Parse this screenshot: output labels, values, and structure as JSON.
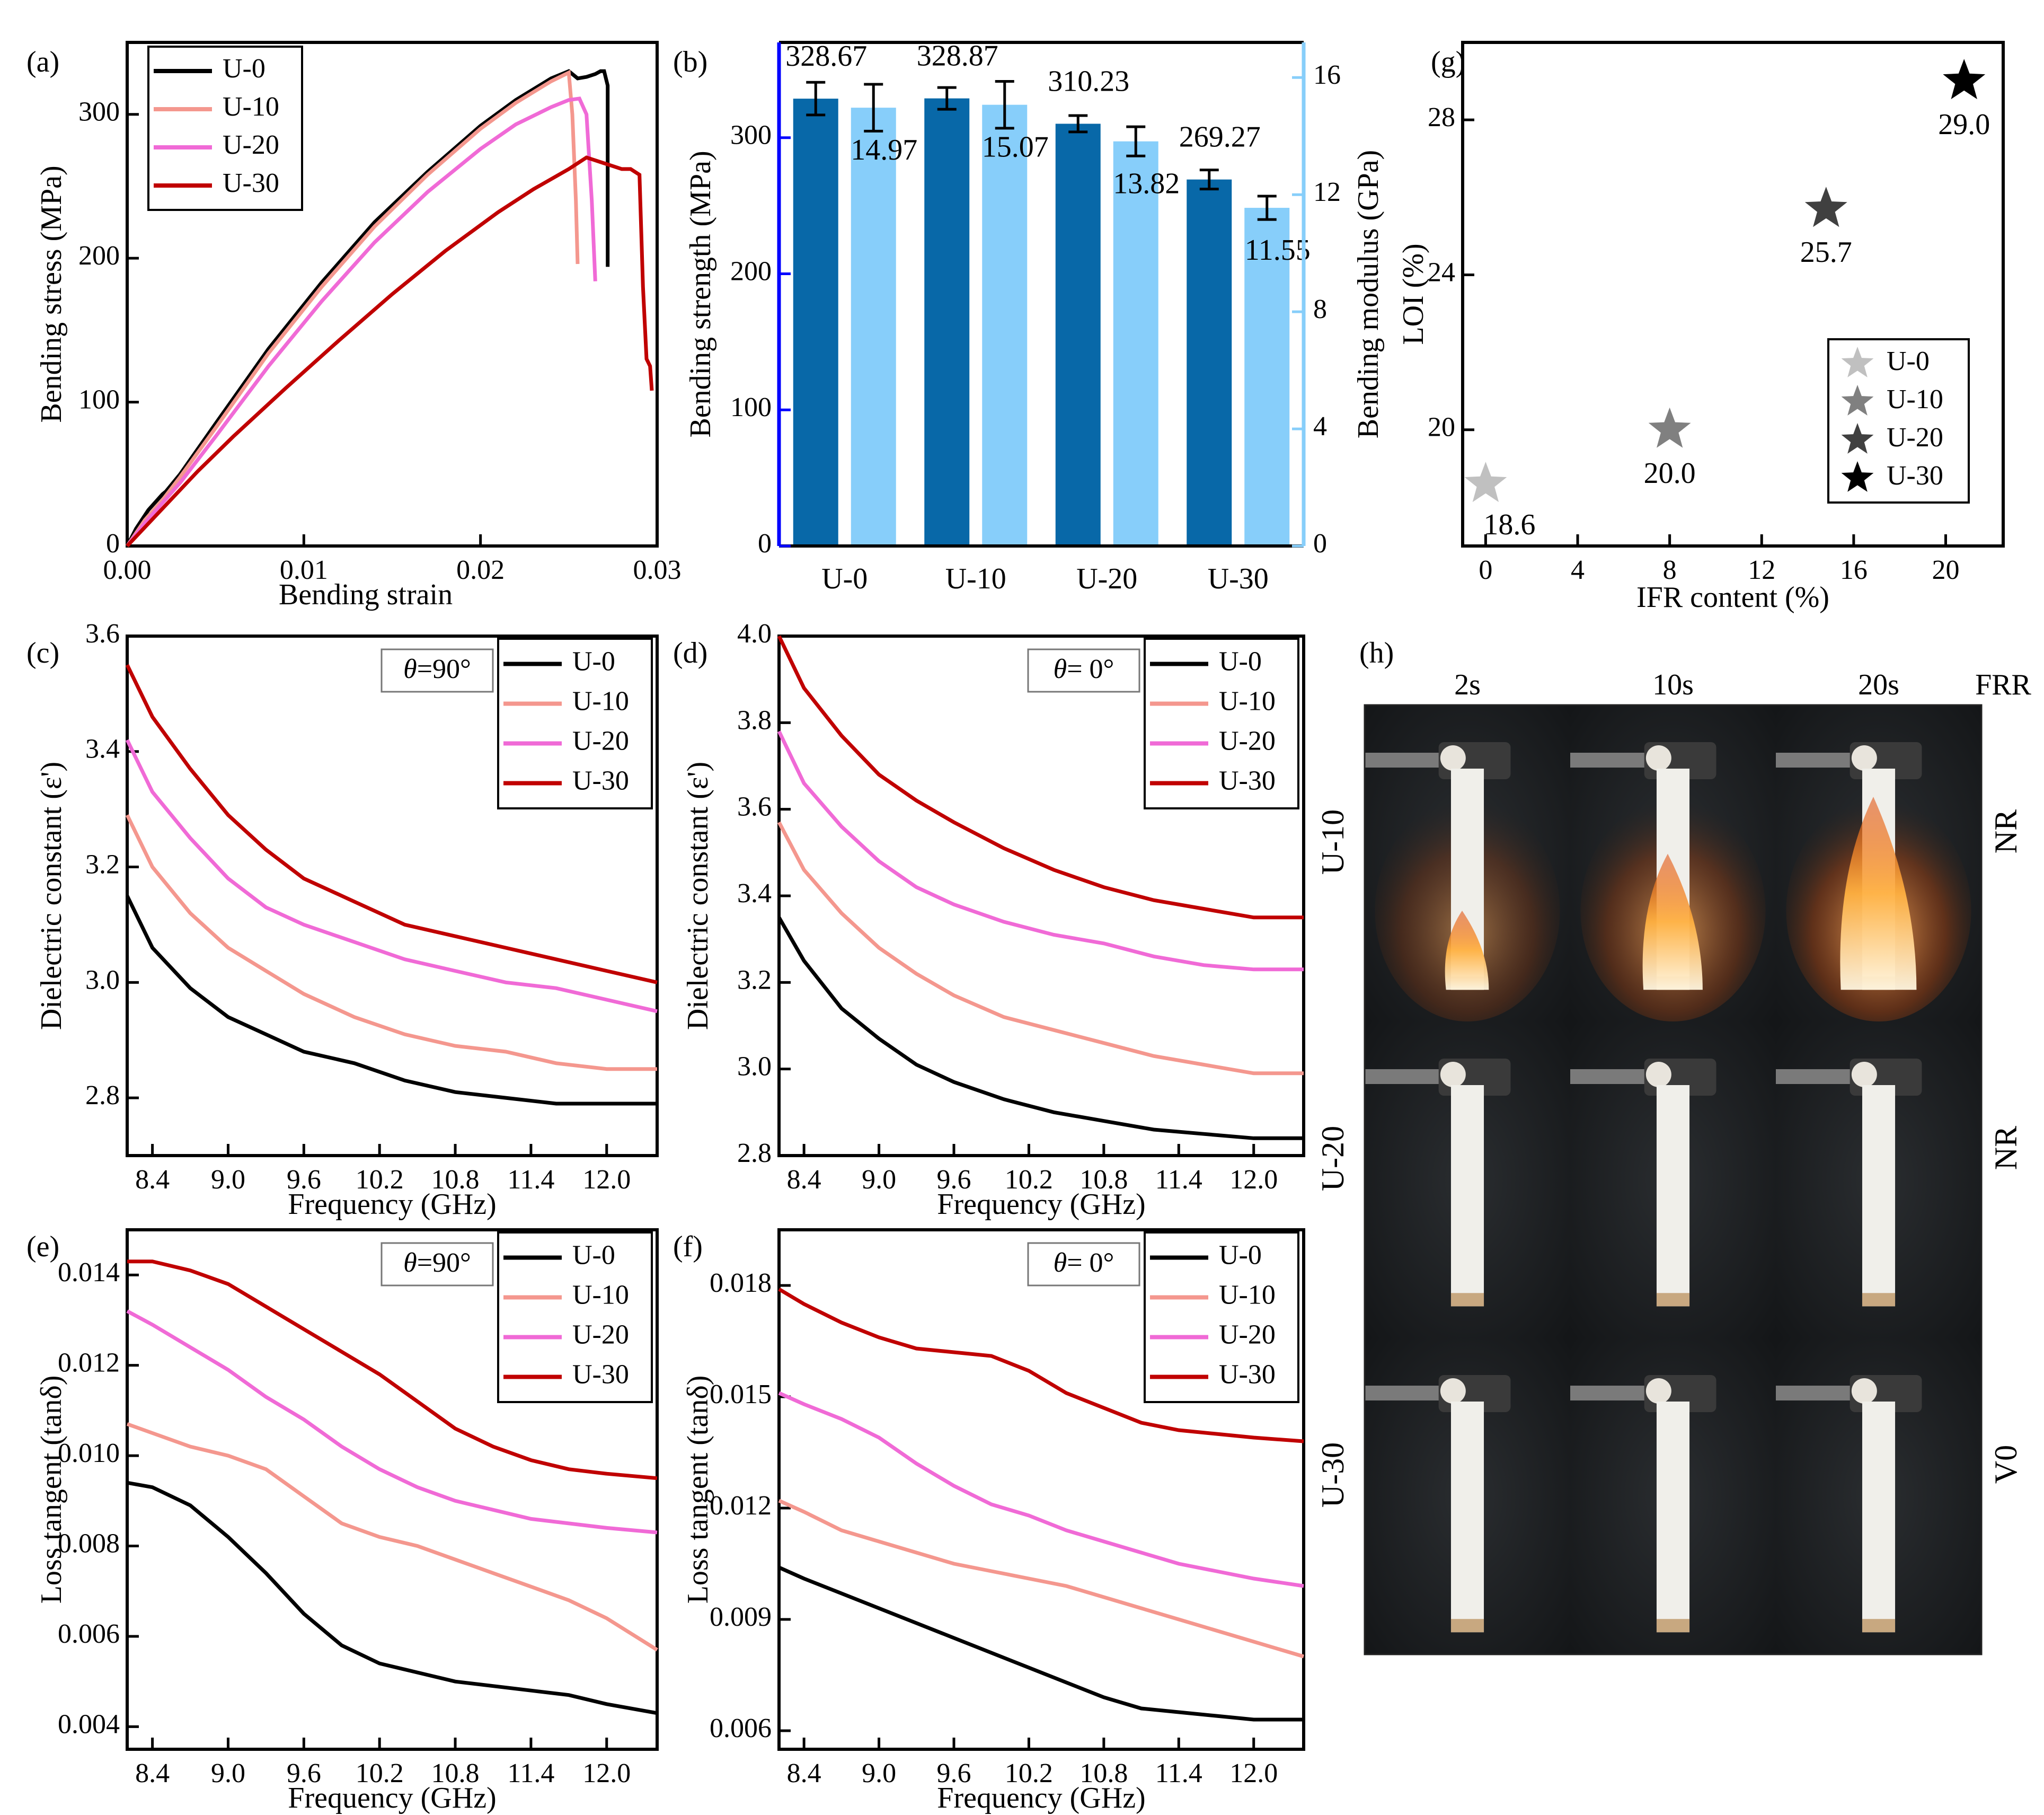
{
  "figure": {
    "panel_labels": [
      "(a)",
      "(b)",
      "(c)",
      "(d)",
      "(e)",
      "(f)",
      "(g)",
      "(h)"
    ]
  },
  "colors": {
    "U-0": "#000000",
    "U-10": "#f4978e",
    "U-20": "#f06ad6",
    "U-30": "#c00000",
    "bar_strength": "#0868a8",
    "bar_modulus": "#87cefa",
    "axis_strength": "#0000ff",
    "axis_modulus": "#87cefa",
    "star_U-0": "#c0c0c0",
    "star_U-10": "#808080",
    "star_U-20": "#404040",
    "star_U-30": "#000000"
  },
  "chart_data": [
    {
      "id": "a",
      "type": "line",
      "xlabel": "Bending strain",
      "ylabel": "Bending stress (MPa)",
      "xlim": [
        0,
        0.03
      ],
      "ylim": [
        0,
        350
      ],
      "xticks": [
        0.0,
        0.01,
        0.02,
        0.03
      ],
      "xtick_labels": [
        "0.00",
        "0.01",
        "0.02",
        "0.03"
      ],
      "yticks": [
        0,
        100,
        200,
        300
      ],
      "legend": "top-left",
      "series": [
        {
          "name": "U-0",
          "x": [
            0,
            0.0005,
            0.0012,
            0.002,
            0.0022,
            0.003,
            0.005,
            0.008,
            0.011,
            0.014,
            0.017,
            0.02,
            0.022,
            0.024,
            0.025,
            0.0255,
            0.026,
            0.0265,
            0.0268,
            0.027,
            0.0272,
            0.0272
          ],
          "y": [
            0,
            12,
            25,
            36,
            38,
            50,
            85,
            137,
            183,
            225,
            260,
            292,
            310,
            325,
            330,
            325,
            326,
            328,
            330,
            330,
            320,
            194
          ]
        },
        {
          "name": "U-10",
          "x": [
            0,
            0.001,
            0.002,
            0.003,
            0.005,
            0.008,
            0.011,
            0.014,
            0.017,
            0.02,
            0.022,
            0.024,
            0.025,
            0.0252,
            0.0254,
            0.0255
          ],
          "y": [
            0,
            18,
            32,
            48,
            82,
            134,
            180,
            222,
            258,
            290,
            308,
            323,
            329,
            300,
            240,
            196
          ]
        },
        {
          "name": "U-20",
          "x": [
            0,
            0.001,
            0.002,
            0.003,
            0.005,
            0.008,
            0.011,
            0.014,
            0.017,
            0.02,
            0.022,
            0.024,
            0.025,
            0.0256,
            0.026,
            0.0263,
            0.0265
          ],
          "y": [
            0,
            16,
            30,
            44,
            76,
            125,
            170,
            211,
            246,
            276,
            293,
            305,
            310,
            311,
            300,
            240,
            184
          ]
        },
        {
          "name": "U-30",
          "x": [
            0,
            0.002,
            0.004,
            0.006,
            0.009,
            0.012,
            0.015,
            0.018,
            0.021,
            0.023,
            0.025,
            0.026,
            0.027,
            0.028,
            0.0285,
            0.029,
            0.0292,
            0.0294,
            0.0296,
            0.0297
          ],
          "y": [
            0,
            26,
            52,
            76,
            110,
            143,
            175,
            205,
            232,
            248,
            262,
            270,
            266,
            262,
            262,
            258,
            180,
            130,
            125,
            108
          ]
        }
      ]
    },
    {
      "id": "b",
      "type": "bar",
      "categories": [
        "U-0",
        "U-10",
        "U-20",
        "U-30"
      ],
      "ylabel": "Bending strength (MPa)",
      "ylabel_right": "Bending modulus (GPa)",
      "ylim": [
        0,
        370
      ],
      "ylim_right": [
        0,
        17.2
      ],
      "yticks": [
        0,
        100,
        200,
        300
      ],
      "yticks_right": [
        0,
        4,
        8,
        12,
        16
      ],
      "series": [
        {
          "name": "Bending strength",
          "axis": "left",
          "values": [
            328.67,
            328.87,
            310.23,
            269.27
          ],
          "errors": [
            12,
            8,
            6,
            7
          ],
          "labels": [
            "328.67",
            "328.87",
            "310.23",
            "269.27"
          ]
        },
        {
          "name": "Bending modulus",
          "axis": "right",
          "values": [
            14.97,
            15.07,
            13.82,
            11.55
          ],
          "errors": [
            0.8,
            0.8,
            0.5,
            0.4
          ],
          "labels": [
            "14.97",
            "15.07",
            "13.82",
            "11.55"
          ]
        }
      ]
    },
    {
      "id": "c",
      "type": "line",
      "xlabel": "Frequency (GHz)",
      "ylabel": "Dielectric constant (ε')",
      "annotation": "θ=90°",
      "xlim": [
        8.2,
        12.4
      ],
      "ylim": [
        2.7,
        3.6
      ],
      "xticks": [
        8.4,
        9.0,
        9.6,
        10.2,
        10.8,
        11.4,
        12.0
      ],
      "xtick_labels": [
        "8.4",
        "9.0",
        "9.6",
        "10.2",
        "10.8",
        "11.4",
        "12.0"
      ],
      "yticks": [
        2.8,
        3.0,
        3.2,
        3.4,
        3.6
      ],
      "ytick_labels": [
        "2.8",
        "3.0",
        "3.2",
        "3.4",
        "3.6"
      ],
      "legend": "top-right",
      "series": [
        {
          "name": "U-0",
          "x": [
            8.2,
            8.4,
            8.7,
            9.0,
            9.3,
            9.6,
            10.0,
            10.4,
            10.8,
            11.2,
            11.6,
            12.0,
            12.4
          ],
          "y": [
            3.15,
            3.06,
            2.99,
            2.94,
            2.91,
            2.88,
            2.86,
            2.83,
            2.81,
            2.8,
            2.79,
            2.79,
            2.79
          ]
        },
        {
          "name": "U-10",
          "x": [
            8.2,
            8.4,
            8.7,
            9.0,
            9.3,
            9.6,
            10.0,
            10.4,
            10.8,
            11.2,
            11.6,
            12.0,
            12.4
          ],
          "y": [
            3.29,
            3.2,
            3.12,
            3.06,
            3.02,
            2.98,
            2.94,
            2.91,
            2.89,
            2.88,
            2.86,
            2.85,
            2.85
          ]
        },
        {
          "name": "U-20",
          "x": [
            8.2,
            8.4,
            8.7,
            9.0,
            9.3,
            9.6,
            10.0,
            10.4,
            10.8,
            11.2,
            11.6,
            12.0,
            12.4
          ],
          "y": [
            3.42,
            3.33,
            3.25,
            3.18,
            3.13,
            3.1,
            3.07,
            3.04,
            3.02,
            3.0,
            2.99,
            2.97,
            2.95
          ]
        },
        {
          "name": "U-30",
          "x": [
            8.2,
            8.4,
            8.7,
            9.0,
            9.3,
            9.6,
            10.0,
            10.4,
            10.8,
            11.2,
            11.6,
            12.0,
            12.4
          ],
          "y": [
            3.55,
            3.46,
            3.37,
            3.29,
            3.23,
            3.18,
            3.14,
            3.1,
            3.08,
            3.06,
            3.04,
            3.02,
            3.0
          ]
        }
      ]
    },
    {
      "id": "d",
      "type": "line",
      "xlabel": "Frequency (GHz)",
      "ylabel": "Dielectric constant (ε')",
      "annotation": "θ= 0°",
      "xlim": [
        8.2,
        12.4
      ],
      "ylim": [
        2.8,
        4.0
      ],
      "xticks": [
        8.4,
        9.0,
        9.6,
        10.2,
        10.8,
        11.4,
        12.0
      ],
      "xtick_labels": [
        "8.4",
        "9.0",
        "9.6",
        "10.2",
        "10.8",
        "11.4",
        "12.0"
      ],
      "yticks": [
        2.8,
        3.0,
        3.2,
        3.4,
        3.6,
        3.8,
        4.0
      ],
      "ytick_labels": [
        "2.8",
        "3.0",
        "3.2",
        "3.4",
        "3.6",
        "3.8",
        "4.0"
      ],
      "legend": "top-right",
      "series": [
        {
          "name": "U-0",
          "x": [
            8.2,
            8.4,
            8.7,
            9.0,
            9.3,
            9.6,
            10.0,
            10.4,
            10.8,
            11.2,
            11.6,
            12.0,
            12.4
          ],
          "y": [
            3.35,
            3.25,
            3.14,
            3.07,
            3.01,
            2.97,
            2.93,
            2.9,
            2.88,
            2.86,
            2.85,
            2.84,
            2.84
          ]
        },
        {
          "name": "U-10",
          "x": [
            8.2,
            8.4,
            8.7,
            9.0,
            9.3,
            9.6,
            10.0,
            10.4,
            10.8,
            11.2,
            11.6,
            12.0,
            12.4
          ],
          "y": [
            3.57,
            3.46,
            3.36,
            3.28,
            3.22,
            3.17,
            3.12,
            3.09,
            3.06,
            3.03,
            3.01,
            2.99,
            2.99
          ]
        },
        {
          "name": "U-20",
          "x": [
            8.2,
            8.4,
            8.7,
            9.0,
            9.3,
            9.6,
            10.0,
            10.4,
            10.8,
            11.2,
            11.6,
            12.0,
            12.4
          ],
          "y": [
            3.78,
            3.66,
            3.56,
            3.48,
            3.42,
            3.38,
            3.34,
            3.31,
            3.29,
            3.26,
            3.24,
            3.23,
            3.23
          ]
        },
        {
          "name": "U-30",
          "x": [
            8.2,
            8.4,
            8.7,
            9.0,
            9.3,
            9.6,
            10.0,
            10.4,
            10.8,
            11.2,
            11.6,
            12.0,
            12.4
          ],
          "y": [
            4.0,
            3.88,
            3.77,
            3.68,
            3.62,
            3.57,
            3.51,
            3.46,
            3.42,
            3.39,
            3.37,
            3.35,
            3.35
          ]
        }
      ]
    },
    {
      "id": "e",
      "type": "line",
      "xlabel": "Frequency (GHz)",
      "ylabel": "Loss tangent (tanδ)",
      "annotation": "θ=90°",
      "xlim": [
        8.2,
        12.4
      ],
      "ylim": [
        0.0035,
        0.015
      ],
      "xticks": [
        8.4,
        9.0,
        9.6,
        10.2,
        10.8,
        11.4,
        12.0
      ],
      "xtick_labels": [
        "8.4",
        "9.0",
        "9.6",
        "10.2",
        "10.8",
        "11.4",
        "12.0"
      ],
      "yticks": [
        0.004,
        0.006,
        0.008,
        0.01,
        0.012,
        0.014
      ],
      "ytick_labels": [
        "0.004",
        "0.006",
        "0.008",
        "0.010",
        "0.012",
        "0.014"
      ],
      "legend": "top-right",
      "series": [
        {
          "name": "U-0",
          "x": [
            8.2,
            8.4,
            8.7,
            9.0,
            9.3,
            9.6,
            9.9,
            10.2,
            10.5,
            10.8,
            11.1,
            11.4,
            11.7,
            12.0,
            12.4
          ],
          "y": [
            0.0094,
            0.0093,
            0.0089,
            0.0082,
            0.0074,
            0.0065,
            0.0058,
            0.0054,
            0.0052,
            0.005,
            0.0049,
            0.0048,
            0.0047,
            0.0045,
            0.0043
          ]
        },
        {
          "name": "U-10",
          "x": [
            8.2,
            8.4,
            8.7,
            9.0,
            9.3,
            9.6,
            9.9,
            10.2,
            10.5,
            10.8,
            11.1,
            11.4,
            11.7,
            12.0,
            12.4
          ],
          "y": [
            0.0107,
            0.0105,
            0.0102,
            0.01,
            0.0097,
            0.0091,
            0.0085,
            0.0082,
            0.008,
            0.0077,
            0.0074,
            0.0071,
            0.0068,
            0.0064,
            0.0057
          ]
        },
        {
          "name": "U-20",
          "x": [
            8.2,
            8.4,
            8.7,
            9.0,
            9.3,
            9.6,
            9.9,
            10.2,
            10.5,
            10.8,
            11.1,
            11.4,
            11.7,
            12.0,
            12.4
          ],
          "y": [
            0.0132,
            0.0129,
            0.0124,
            0.0119,
            0.0113,
            0.0108,
            0.0102,
            0.0097,
            0.0093,
            0.009,
            0.0088,
            0.0086,
            0.0085,
            0.0084,
            0.0083
          ]
        },
        {
          "name": "U-30",
          "x": [
            8.2,
            8.4,
            8.7,
            9.0,
            9.3,
            9.6,
            9.9,
            10.2,
            10.5,
            10.8,
            11.1,
            11.4,
            11.7,
            12.0,
            12.4
          ],
          "y": [
            0.0143,
            0.0143,
            0.0141,
            0.0138,
            0.0133,
            0.0128,
            0.0123,
            0.0118,
            0.0112,
            0.0106,
            0.0102,
            0.0099,
            0.0097,
            0.0096,
            0.0095
          ]
        }
      ]
    },
    {
      "id": "f",
      "type": "line",
      "xlabel": "Frequency (GHz)",
      "ylabel": "Loss tangent (tanδ)",
      "annotation": "θ= 0°",
      "xlim": [
        8.2,
        12.4
      ],
      "ylim": [
        0.0055,
        0.0195
      ],
      "xticks": [
        8.4,
        9.0,
        9.6,
        10.2,
        10.8,
        11.4,
        12.0
      ],
      "xtick_labels": [
        "8.4",
        "9.0",
        "9.6",
        "10.2",
        "10.8",
        "11.4",
        "12.0"
      ],
      "yticks": [
        0.006,
        0.009,
        0.012,
        0.015,
        0.018
      ],
      "ytick_labels": [
        "0.006",
        "0.009",
        "0.012",
        "0.015",
        "0.018"
      ],
      "legend": "top-right",
      "series": [
        {
          "name": "U-0",
          "x": [
            8.2,
            8.4,
            8.7,
            9.0,
            9.3,
            9.6,
            9.9,
            10.2,
            10.5,
            10.8,
            11.1,
            11.4,
            11.7,
            12.0,
            12.4
          ],
          "y": [
            0.0104,
            0.0101,
            0.0097,
            0.0093,
            0.0089,
            0.0085,
            0.0081,
            0.0077,
            0.0073,
            0.0069,
            0.0066,
            0.0065,
            0.0064,
            0.0063,
            0.0063
          ]
        },
        {
          "name": "U-10",
          "x": [
            8.2,
            8.4,
            8.7,
            9.0,
            9.3,
            9.6,
            9.9,
            10.2,
            10.5,
            10.8,
            11.1,
            11.4,
            11.7,
            12.0,
            12.4
          ],
          "y": [
            0.0122,
            0.0119,
            0.0114,
            0.0111,
            0.0108,
            0.0105,
            0.0103,
            0.0101,
            0.0099,
            0.0096,
            0.0093,
            0.009,
            0.0087,
            0.0084,
            0.008
          ]
        },
        {
          "name": "U-20",
          "x": [
            8.2,
            8.4,
            8.7,
            9.0,
            9.3,
            9.6,
            9.9,
            10.2,
            10.5,
            10.8,
            11.1,
            11.4,
            11.7,
            12.0,
            12.4
          ],
          "y": [
            0.0151,
            0.0148,
            0.0144,
            0.0139,
            0.0132,
            0.0126,
            0.0121,
            0.0118,
            0.0114,
            0.0111,
            0.0108,
            0.0105,
            0.0103,
            0.0101,
            0.0099
          ]
        },
        {
          "name": "U-30",
          "x": [
            8.2,
            8.4,
            8.7,
            9.0,
            9.3,
            9.6,
            9.9,
            10.2,
            10.5,
            10.8,
            11.1,
            11.4,
            11.7,
            12.0,
            12.4
          ],
          "y": [
            0.0179,
            0.0175,
            0.017,
            0.0166,
            0.0163,
            0.0162,
            0.0161,
            0.0157,
            0.0151,
            0.0147,
            0.0143,
            0.0141,
            0.014,
            0.0139,
            0.0138
          ]
        }
      ]
    },
    {
      "id": "g",
      "type": "scatter",
      "xlabel": "IFR content (%)",
      "ylabel": "LOI (%)",
      "xlim": [
        -1,
        22.5
      ],
      "ylim": [
        17,
        30
      ],
      "xticks": [
        0,
        4,
        8,
        12,
        16,
        20
      ],
      "yticks": [
        20,
        24,
        28
      ],
      "legend": "bottom-right",
      "series": [
        {
          "name": "U-0",
          "x": [
            0
          ],
          "y": [
            18.6
          ],
          "label": "18.6"
        },
        {
          "name": "U-10",
          "x": [
            8
          ],
          "y": [
            20.0
          ],
          "label": "20.0"
        },
        {
          "name": "U-20",
          "x": [
            14.8
          ],
          "y": [
            25.7
          ],
          "label": "25.7"
        },
        {
          "name": "U-30",
          "x": [
            20.8
          ],
          "y": [
            29.0
          ],
          "label": "29.0"
        }
      ]
    }
  ],
  "panel_h": {
    "times": [
      "2s",
      "10s",
      "20s"
    ],
    "frr_header": "FRR",
    "rows": [
      {
        "sample": "U-10",
        "frr": "NR"
      },
      {
        "sample": "U-20",
        "frr": "NR"
      },
      {
        "sample": "U-30",
        "frr": "V0"
      }
    ]
  }
}
